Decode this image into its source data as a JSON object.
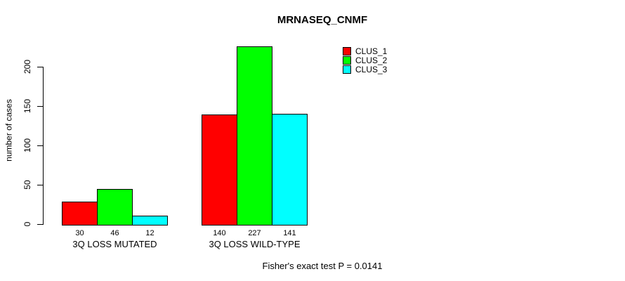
{
  "background_color": "#ffffff",
  "text_color": "#000000",
  "chart_data": {
    "type": "bar",
    "title": "MRNASEQ_CNMF",
    "ylabel": "number of cases",
    "xlabel": "",
    "categories": [
      "3Q LOSS MUTATED",
      "3Q LOSS WILD-TYPE"
    ],
    "series": [
      {
        "name": "CLUS_1",
        "color": "#ff0000",
        "values": [
          30,
          140
        ]
      },
      {
        "name": "CLUS_2",
        "color": "#00ff00",
        "values": [
          46,
          227
        ]
      },
      {
        "name": "CLUS_3",
        "color": "#00ffff",
        "values": [
          12,
          141
        ]
      }
    ],
    "value_labels": [
      [
        "30",
        "46",
        "12"
      ],
      [
        "140",
        "227",
        "141"
      ]
    ],
    "y_ticks": [
      0,
      50,
      100,
      150,
      200
    ],
    "ylim": [
      0,
      230
    ],
    "grid": false,
    "legend_position": "top-right-inside",
    "legend_entries": [
      "CLUS_1",
      "CLUS_2",
      "CLUS_3"
    ],
    "annotation": "Fisher's exact test P = 0.0141"
  }
}
